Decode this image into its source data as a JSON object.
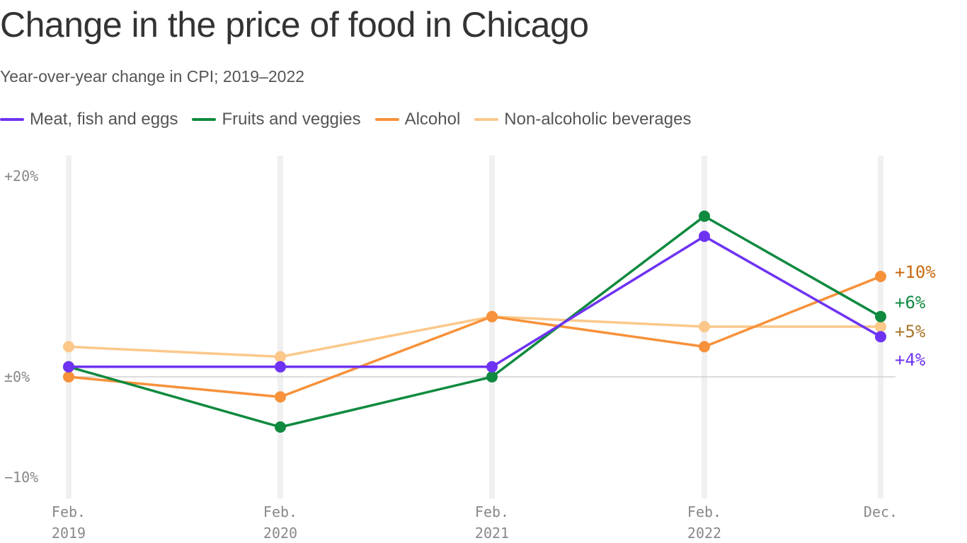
{
  "chart_data": {
    "type": "line",
    "title": "Change in the price of food in Chicago",
    "subtitle": "Year-over-year change in CPI; 2019–2022",
    "x_categories": [
      {
        "line1": "Feb.",
        "line2": "2019"
      },
      {
        "line1": "Feb.",
        "line2": "2020"
      },
      {
        "line1": "Feb.",
        "line2": "2021"
      },
      {
        "line1": "Feb.",
        "line2": "2022"
      },
      {
        "line1": "Dec.",
        "line2": ""
      }
    ],
    "y_ticks": [
      {
        "value": 20,
        "label": "+20%"
      },
      {
        "value": 0,
        "label": "±0%"
      },
      {
        "value": -10,
        "label": "−10%"
      }
    ],
    "ylim": [
      -12,
      22
    ],
    "grid": true,
    "legend_placement": "top-left",
    "series": [
      {
        "name": "Meat, fish and eggs",
        "color": "#6e33f2",
        "values": [
          1,
          1,
          1,
          14,
          4
        ],
        "end_label": "+4%",
        "label_color": "#6e33f2"
      },
      {
        "name": "Fruits and veggies",
        "color": "#0f8a3f",
        "values": [
          1,
          -5,
          0,
          16,
          6
        ],
        "end_label": "+6%",
        "label_color": "#0f8a3f"
      },
      {
        "name": "Alcohol",
        "color": "#f7913a",
        "values": [
          0,
          -2,
          6,
          3,
          10
        ],
        "end_label": "+10%",
        "label_color": "#c96a12"
      },
      {
        "name": "Non-alcoholic beverages",
        "color": "#fbc88a",
        "values": [
          3,
          2,
          6,
          5,
          5
        ],
        "end_label": "+5%",
        "label_color": "#a8752b"
      }
    ]
  }
}
